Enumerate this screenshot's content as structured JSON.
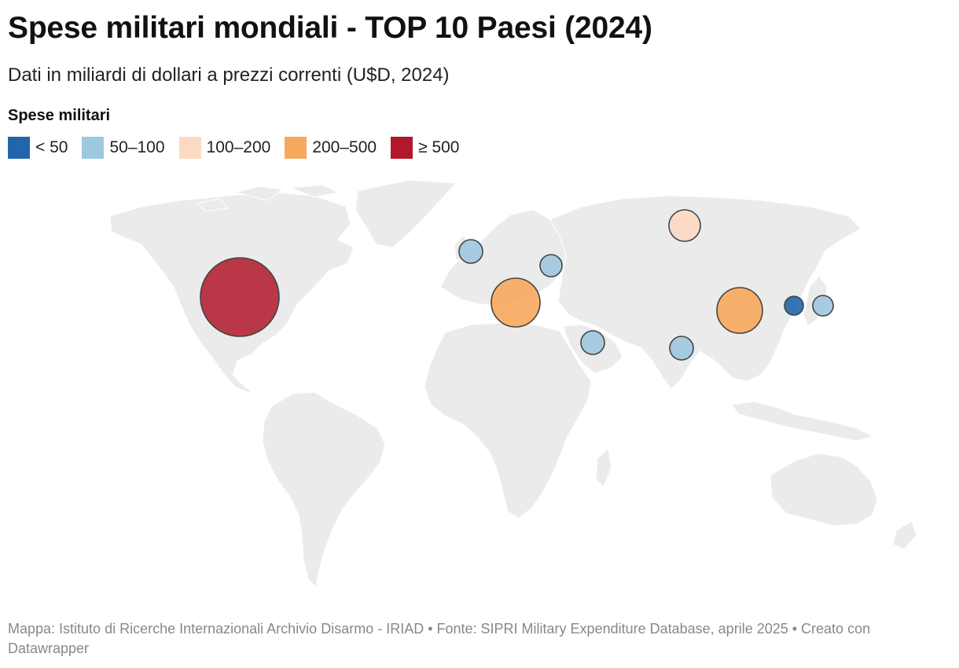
{
  "title": "Spese militari mondiali - TOP 10 Paesi (2024)",
  "subtitle": "Dati in miliardi di dollari a prezzi correnti (U$D, 2024)",
  "legend": {
    "title": "Spese militari",
    "items": [
      {
        "label": "< 50",
        "color": "#2166ac"
      },
      {
        "label": "50–100",
        "color": "#9ec8e0"
      },
      {
        "label": "100–200",
        "color": "#fdd9c4"
      },
      {
        "label": "200–500",
        "color": "#f7a95c"
      },
      {
        "label": "≥ 500",
        "color": "#b2182b"
      }
    ]
  },
  "map": {
    "land_color": "#ebebeb",
    "border_color": "#999999",
    "bubbles": [
      {
        "location": "United States",
        "category": "≥ 500",
        "color": "#b2182b"
      },
      {
        "location": "China",
        "category": "200–500",
        "color": "#f7a95c"
      },
      {
        "location": "Mediterranean / Italy",
        "category": "200–500",
        "color": "#f7a95c"
      },
      {
        "location": "Russia",
        "category": "100–200",
        "color": "#fdd9c4"
      },
      {
        "location": "United Kingdom",
        "category": "50–100",
        "color": "#9ec8e0"
      },
      {
        "location": "Ukraine",
        "category": "50–100",
        "color": "#9ec8e0"
      },
      {
        "location": "Saudi Arabia",
        "category": "50–100",
        "color": "#9ec8e0"
      },
      {
        "location": "India",
        "category": "50–100",
        "color": "#9ec8e0"
      },
      {
        "location": "Japan",
        "category": "50–100",
        "color": "#9ec8e0"
      },
      {
        "location": "South Korea",
        "category": "< 50",
        "color": "#2166ac"
      }
    ]
  },
  "footer": "Mappa: Istituto di Ricerche Internazionali Archivio Disarmo - IRIAD • Fonte: SIPRI Military Expenditure Database, aprile 2025 • Creato con Datawrapper"
}
